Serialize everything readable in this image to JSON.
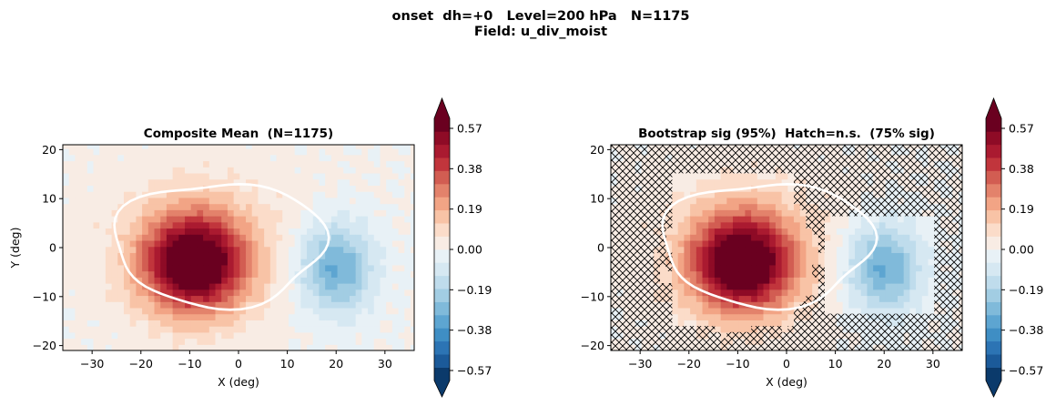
{
  "suptitle_line1": "onset  dh=+0   Level=200 hPa   N=1175",
  "suptitle_line2": "Field: u_div_moist",
  "chart_data": [
    {
      "type": "heatmap",
      "title": "Composite Mean  (N=1175)",
      "xlabel": "X (deg)",
      "ylabel": "Y (deg)",
      "xlim": [
        -36,
        36
      ],
      "ylim": [
        -21,
        21
      ],
      "xticks": [
        -30,
        -20,
        -10,
        0,
        10,
        20,
        30
      ],
      "yticks": [
        -20,
        -10,
        0,
        10,
        20
      ],
      "contour_max": 0.64,
      "positive_center": [
        -9,
        -3
      ],
      "negative_center": [
        20,
        -4
      ],
      "white_contour": "closed line around the positive maximum",
      "hatched": false,
      "colorbar_ticks": [
        "0.57",
        "0.38",
        "0.19",
        "0.00",
        "−0.19",
        "−0.38",
        "−0.57"
      ]
    },
    {
      "type": "heatmap",
      "title": "Bootstrap sig (95%)  Hatch=n.s.  (75% sig)",
      "xlabel": "X (deg)",
      "ylabel": "",
      "xlim": [
        -36,
        36
      ],
      "ylim": [
        -21,
        21
      ],
      "xticks": [
        -30,
        -20,
        -10,
        0,
        10,
        20,
        30
      ],
      "yticks": [
        -20,
        -10,
        0,
        10,
        20
      ],
      "contour_max": 0.64,
      "positive_center": [
        -9,
        -3
      ],
      "negative_center": [
        20,
        -4
      ],
      "white_contour": "closed line around the positive maximum",
      "hatched": true,
      "hatch_meaning": "n.s.",
      "colorbar_ticks": [
        "0.57",
        "0.38",
        "0.19",
        "0.00",
        "−0.19",
        "−0.38",
        "−0.57"
      ]
    }
  ],
  "colormap": [
    "#0b3a6b",
    "#1b5a99",
    "#2c74b4",
    "#3f8ec4",
    "#5da5d1",
    "#80bada",
    "#a2cde3",
    "#bfdcec",
    "#d6e8f2",
    "#e8f1f6",
    "#f8ece4",
    "#fbdcc9",
    "#f8c3a6",
    "#f2a485",
    "#e3826b",
    "#d25d52",
    "#c1353c",
    "#aa1a30",
    "#8e0b26",
    "#6a0020"
  ],
  "colormap_levels": 20
}
